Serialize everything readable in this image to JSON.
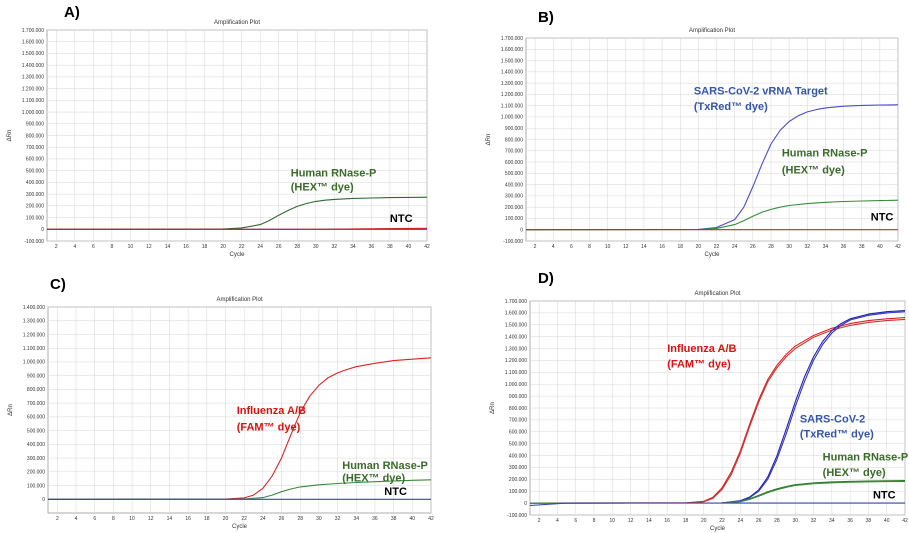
{
  "chart_data": [
    {
      "id": "A",
      "panel_label": "A)",
      "type": "line",
      "title": "Amplification Plot",
      "xlabel": "Cycle",
      "ylabel": "ΔRn",
      "xlim": [
        1,
        42
      ],
      "ylim": [
        -100000,
        1700000
      ],
      "x_ticks": [
        2,
        4,
        6,
        8,
        10,
        12,
        14,
        16,
        18,
        20,
        22,
        24,
        26,
        28,
        30,
        32,
        34,
        36,
        38,
        40,
        42
      ],
      "y_ticks": [
        -100000,
        0,
        100000,
        200000,
        300000,
        400000,
        500000,
        600000,
        700000,
        800000,
        900000,
        1000000,
        1100000,
        1200000,
        1300000,
        1400000,
        1500000,
        1600000,
        1700000
      ],
      "y_tick_labels": [
        "-100.000",
        "0",
        "100.000",
        "200.000",
        "300.000",
        "400.000",
        "500.000",
        "600.000",
        "700.000",
        "800.000",
        "900.000",
        "1.000.000",
        "1.100.000",
        "1.200.000",
        "1.300.000",
        "1.400.000",
        "1.500.000",
        "1.600.000",
        "1.700.000"
      ],
      "grid": true,
      "series": [
        {
          "color": "#2e6b2e",
          "x": [
            1,
            20,
            22,
            24,
            25,
            26,
            27,
            28,
            29,
            30,
            31,
            32,
            34,
            36,
            38,
            40,
            42
          ],
          "y": [
            0,
            2000,
            12000,
            40000,
            75000,
            120000,
            160000,
            195000,
            220000,
            238000,
            248000,
            255000,
            263000,
            267000,
            270000,
            272000,
            274000
          ]
        },
        {
          "color": "#3344aa",
          "x": [
            1,
            10,
            20,
            42
          ],
          "y": [
            0,
            0,
            0,
            0
          ]
        },
        {
          "color": "#cc2222",
          "x": [
            1,
            30,
            42
          ],
          "y": [
            0,
            0,
            8000
          ]
        }
      ],
      "annotations": [
        {
          "text": "Human RNase-P",
          "color": "#3a6b2a",
          "at": [
            27.3,
            450000
          ]
        },
        {
          "text": "(HEX™ dye)",
          "color": "#3a6b2a",
          "at": [
            27.3,
            330000
          ]
        },
        {
          "text": "NTC",
          "color": "#000000",
          "at": [
            38.0,
            60000
          ]
        }
      ]
    },
    {
      "id": "B",
      "panel_label": "B)",
      "type": "line",
      "title": "Amplification Plot",
      "xlabel": "Cycle",
      "ylabel": "ΔRn",
      "xlim": [
        1,
        42
      ],
      "ylim": [
        -100000,
        1700000
      ],
      "x_ticks": [
        2,
        4,
        6,
        8,
        10,
        12,
        14,
        16,
        18,
        20,
        22,
        24,
        26,
        28,
        30,
        32,
        34,
        36,
        38,
        40,
        42
      ],
      "y_ticks": [
        -100000,
        0,
        100000,
        200000,
        300000,
        400000,
        500000,
        600000,
        700000,
        800000,
        900000,
        1000000,
        1100000,
        1200000,
        1300000,
        1400000,
        1500000,
        1600000,
        1700000
      ],
      "y_tick_labels": [
        "-100.000",
        "0",
        "100.000",
        "200.000",
        "300.000",
        "400.000",
        "500.000",
        "600.000",
        "700.000",
        "800.000",
        "900.000",
        "1.000.000",
        "1.100.000",
        "1.200.000",
        "1.300.000",
        "1.400.000",
        "1.500.000",
        "1.600.000",
        "1.700.000"
      ],
      "grid": true,
      "series": [
        {
          "color": "#4a4acc",
          "x": [
            1,
            20,
            22,
            24,
            25,
            26,
            27,
            28,
            29,
            30,
            31,
            32,
            33,
            34,
            36,
            38,
            40,
            42
          ],
          "y": [
            0,
            3000,
            20000,
            90000,
            200000,
            380000,
            580000,
            760000,
            880000,
            960000,
            1010000,
            1045000,
            1065000,
            1080000,
            1095000,
            1102000,
            1106000,
            1108000
          ]
        },
        {
          "color": "#3a8a3a",
          "x": [
            1,
            20,
            22,
            24,
            25,
            26,
            27,
            28,
            29,
            30,
            32,
            34,
            36,
            38,
            40,
            42
          ],
          "y": [
            0,
            2000,
            12000,
            45000,
            80000,
            120000,
            155000,
            180000,
            200000,
            215000,
            232000,
            243000,
            250000,
            255000,
            258000,
            262000
          ]
        },
        {
          "color": "#aa3333",
          "x": [
            1,
            42
          ],
          "y": [
            0,
            0
          ]
        }
      ],
      "annotations": [
        {
          "text": "SARS-CoV-2 vRNA Target",
          "color": "#3355aa",
          "at": [
            19.5,
            1200000
          ]
        },
        {
          "text": "(TxRed™ dye)",
          "color": "#3355aa",
          "at": [
            19.5,
            1060000
          ]
        },
        {
          "text": "Human RNase-P",
          "color": "#3a6b2a",
          "at": [
            29.2,
            650000
          ]
        },
        {
          "text": "(HEX™ dye)",
          "color": "#3a6b2a",
          "at": [
            29.2,
            500000
          ]
        },
        {
          "text": "NTC",
          "color": "#000000",
          "at": [
            39.0,
            80000
          ]
        }
      ]
    },
    {
      "id": "C",
      "panel_label": "C)",
      "type": "line",
      "title": "Amplification Plot",
      "xlabel": "Cycle",
      "ylabel": "ΔRn",
      "xlim": [
        1,
        42
      ],
      "ylim": [
        -100000,
        1400000
      ],
      "x_ticks": [
        2,
        4,
        6,
        8,
        10,
        12,
        14,
        16,
        18,
        20,
        22,
        24,
        26,
        28,
        30,
        32,
        34,
        36,
        38,
        40,
        42
      ],
      "y_ticks": [
        0,
        100000,
        200000,
        300000,
        400000,
        500000,
        600000,
        700000,
        800000,
        900000,
        1000000,
        1100000,
        1200000,
        1300000,
        1400000
      ],
      "y_tick_labels": [
        "0",
        "100.000",
        "200.000",
        "300.000",
        "400.000",
        "500.000",
        "600.000",
        "700.000",
        "800.000",
        "900.000",
        "1.000.000",
        "1.100.000",
        "1.200.000",
        "1.300.000",
        "1.400.000"
      ],
      "grid": true,
      "series": [
        {
          "color": "#dd2222",
          "x": [
            1,
            20,
            22,
            23,
            24,
            25,
            26,
            27,
            28,
            29,
            30,
            31,
            32,
            33,
            34,
            36,
            38,
            40,
            42
          ],
          "y": [
            0,
            2000,
            10000,
            30000,
            80000,
            170000,
            300000,
            470000,
            630000,
            750000,
            830000,
            885000,
            920000,
            945000,
            965000,
            990000,
            1010000,
            1020000,
            1030000
          ]
        },
        {
          "color": "#3a8a3a",
          "x": [
            1,
            22,
            24,
            25,
            26,
            27,
            28,
            30,
            32,
            34,
            36,
            38,
            40,
            42
          ],
          "y": [
            0,
            2000,
            12000,
            30000,
            55000,
            75000,
            90000,
            105000,
            115000,
            122000,
            128000,
            133000,
            138000,
            142000
          ]
        },
        {
          "color": "#3344aa",
          "x": [
            1,
            42
          ],
          "y": [
            0,
            0
          ]
        }
      ],
      "annotations": [
        {
          "text": "Influenza A/B",
          "color": "#dd1111",
          "at": [
            21.2,
            620000
          ]
        },
        {
          "text": "(FAM™ dye)",
          "color": "#dd1111",
          "at": [
            21.2,
            500000
          ]
        },
        {
          "text": "Human RNase-P",
          "color": "#3a6b2a",
          "at": [
            32.5,
            220000
          ]
        },
        {
          "text": "(HEX™ dye)",
          "color": "#3a6b2a",
          "at": [
            32.5,
            130000
          ]
        },
        {
          "text": "NTC",
          "color": "#000000",
          "at": [
            37.0,
            30000
          ]
        }
      ]
    },
    {
      "id": "D",
      "panel_label": "D)",
      "type": "line",
      "title": "Amplification Plot",
      "xlabel": "Cycle",
      "ylabel": "ΔRn",
      "xlim": [
        1,
        42
      ],
      "ylim": [
        -100000,
        1700000
      ],
      "x_ticks": [
        2,
        4,
        6,
        8,
        10,
        12,
        14,
        16,
        18,
        20,
        22,
        24,
        26,
        28,
        30,
        32,
        34,
        36,
        38,
        40,
        42
      ],
      "y_ticks": [
        -100000,
        0,
        100000,
        200000,
        300000,
        400000,
        500000,
        600000,
        700000,
        800000,
        900000,
        1000000,
        1100000,
        1200000,
        1300000,
        1400000,
        1500000,
        1600000,
        1700000
      ],
      "y_tick_labels": [
        "-100.000",
        "0",
        "100.000",
        "200.000",
        "300.000",
        "400.000",
        "500.000",
        "600.000",
        "700.000",
        "800.000",
        "900.000",
        "1.000.000",
        "1.100.000",
        "1.200.000",
        "1.300.000",
        "1.400.000",
        "1.500.000",
        "1.600.000",
        "1.700.000"
      ],
      "grid": true,
      "series": [
        {
          "color": "#dd2222",
          "x": [
            1,
            18,
            20,
            21,
            22,
            23,
            24,
            25,
            26,
            27,
            28,
            29,
            30,
            32,
            34,
            36,
            38,
            40,
            42
          ],
          "y": [
            0,
            2000,
            15000,
            50000,
            130000,
            260000,
            440000,
            660000,
            870000,
            1040000,
            1160000,
            1250000,
            1320000,
            1410000,
            1470000,
            1510000,
            1535000,
            1550000,
            1560000
          ]
        },
        {
          "color": "#cc3333",
          "x": [
            1,
            18,
            20,
            21,
            22,
            23,
            24,
            25,
            26,
            27,
            28,
            29,
            30,
            32,
            34,
            36,
            38,
            40,
            42
          ],
          "y": [
            0,
            2000,
            12000,
            40000,
            115000,
            240000,
            420000,
            640000,
            850000,
            1020000,
            1140000,
            1230000,
            1300000,
            1395000,
            1455000,
            1495000,
            1520000,
            1535000,
            1545000
          ]
        },
        {
          "color": "#2222aa",
          "x": [
            1,
            22,
            24,
            25,
            26,
            27,
            28,
            29,
            30,
            31,
            32,
            33,
            34,
            35,
            36,
            38,
            40,
            42
          ],
          "y": [
            0,
            2000,
            20000,
            50000,
            110000,
            220000,
            400000,
            620000,
            850000,
            1060000,
            1230000,
            1360000,
            1450000,
            1510000,
            1550000,
            1590000,
            1610000,
            1620000
          ]
        },
        {
          "color": "#3333cc",
          "x": [
            1,
            22,
            24,
            25,
            26,
            27,
            28,
            29,
            30,
            31,
            32,
            33,
            34,
            35,
            36,
            38,
            40,
            42
          ],
          "y": [
            0,
            2000,
            18000,
            45000,
            100000,
            200000,
            370000,
            580000,
            810000,
            1020000,
            1200000,
            1335000,
            1430000,
            1495000,
            1540000,
            1580000,
            1600000,
            1610000
          ]
        },
        {
          "color": "#2e7a2e",
          "x": [
            1,
            22,
            24,
            25,
            26,
            27,
            28,
            29,
            30,
            32,
            34,
            36,
            38,
            40,
            42
          ],
          "y": [
            0,
            2000,
            15000,
            35000,
            65000,
            95000,
            120000,
            140000,
            155000,
            170000,
            178000,
            183000,
            186000,
            188000,
            190000
          ]
        },
        {
          "color": "#3a8a3a",
          "x": [
            1,
            22,
            24,
            25,
            26,
            27,
            28,
            29,
            30,
            32,
            34,
            36,
            38,
            40,
            42
          ],
          "y": [
            0,
            2000,
            12000,
            30000,
            58000,
            88000,
            113000,
            133000,
            148000,
            163000,
            171000,
            176000,
            179000,
            181000,
            183000
          ]
        },
        {
          "color": "#3344aa",
          "x": [
            1,
            5,
            42
          ],
          "y": [
            -20000,
            0,
            0
          ]
        }
      ],
      "annotations": [
        {
          "text": "Influenza A/B",
          "color": "#dd1111",
          "at": [
            16.0,
            1270000
          ]
        },
        {
          "text": "(FAM™ dye)",
          "color": "#dd1111",
          "at": [
            16.0,
            1140000
          ]
        },
        {
          "text": "SARS-CoV-2",
          "color": "#3355aa",
          "at": [
            30.5,
            680000
          ]
        },
        {
          "text": "(TxRed™ dye)",
          "color": "#3355aa",
          "at": [
            30.5,
            550000
          ]
        },
        {
          "text": "Human RNase-P",
          "color": "#3a6b2a",
          "at": [
            33.0,
            360000
          ]
        },
        {
          "text": "(HEX™ dye)",
          "color": "#3a6b2a",
          "at": [
            33.0,
            230000
          ]
        },
        {
          "text": "NTC",
          "color": "#000000",
          "at": [
            38.5,
            40000
          ]
        }
      ]
    }
  ]
}
